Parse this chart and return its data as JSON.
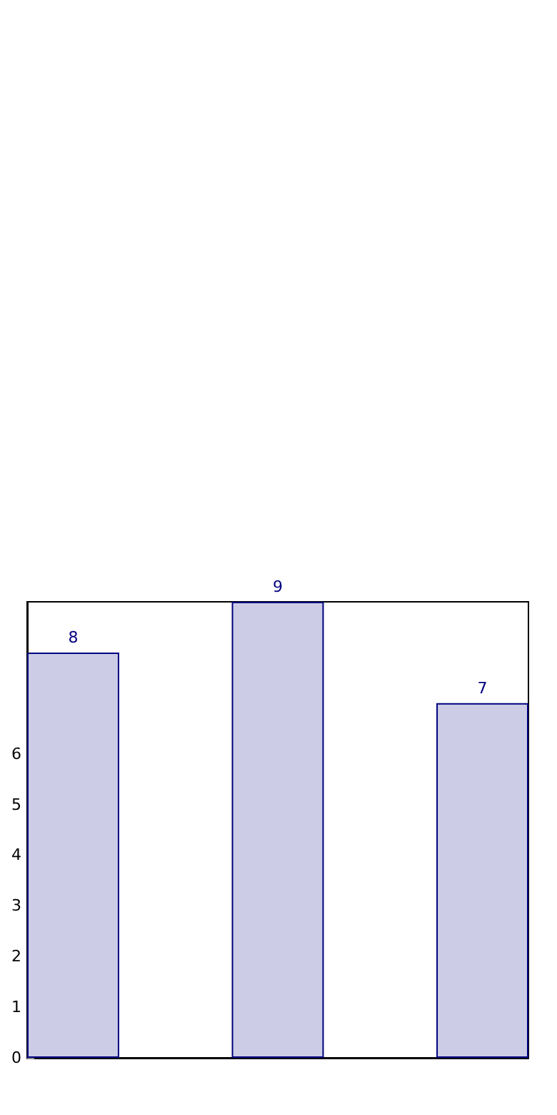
{
  "chart_data": {
    "type": "bar",
    "categories": [
      null,
      null,
      null
    ],
    "values": [
      8,
      9,
      7
    ],
    "color": "#cccce6",
    "ylim": [
      0,
      9
    ],
    "yticks": [
      0,
      1,
      2,
      3,
      4,
      5,
      6
    ],
    "data_labels": true
  }
}
